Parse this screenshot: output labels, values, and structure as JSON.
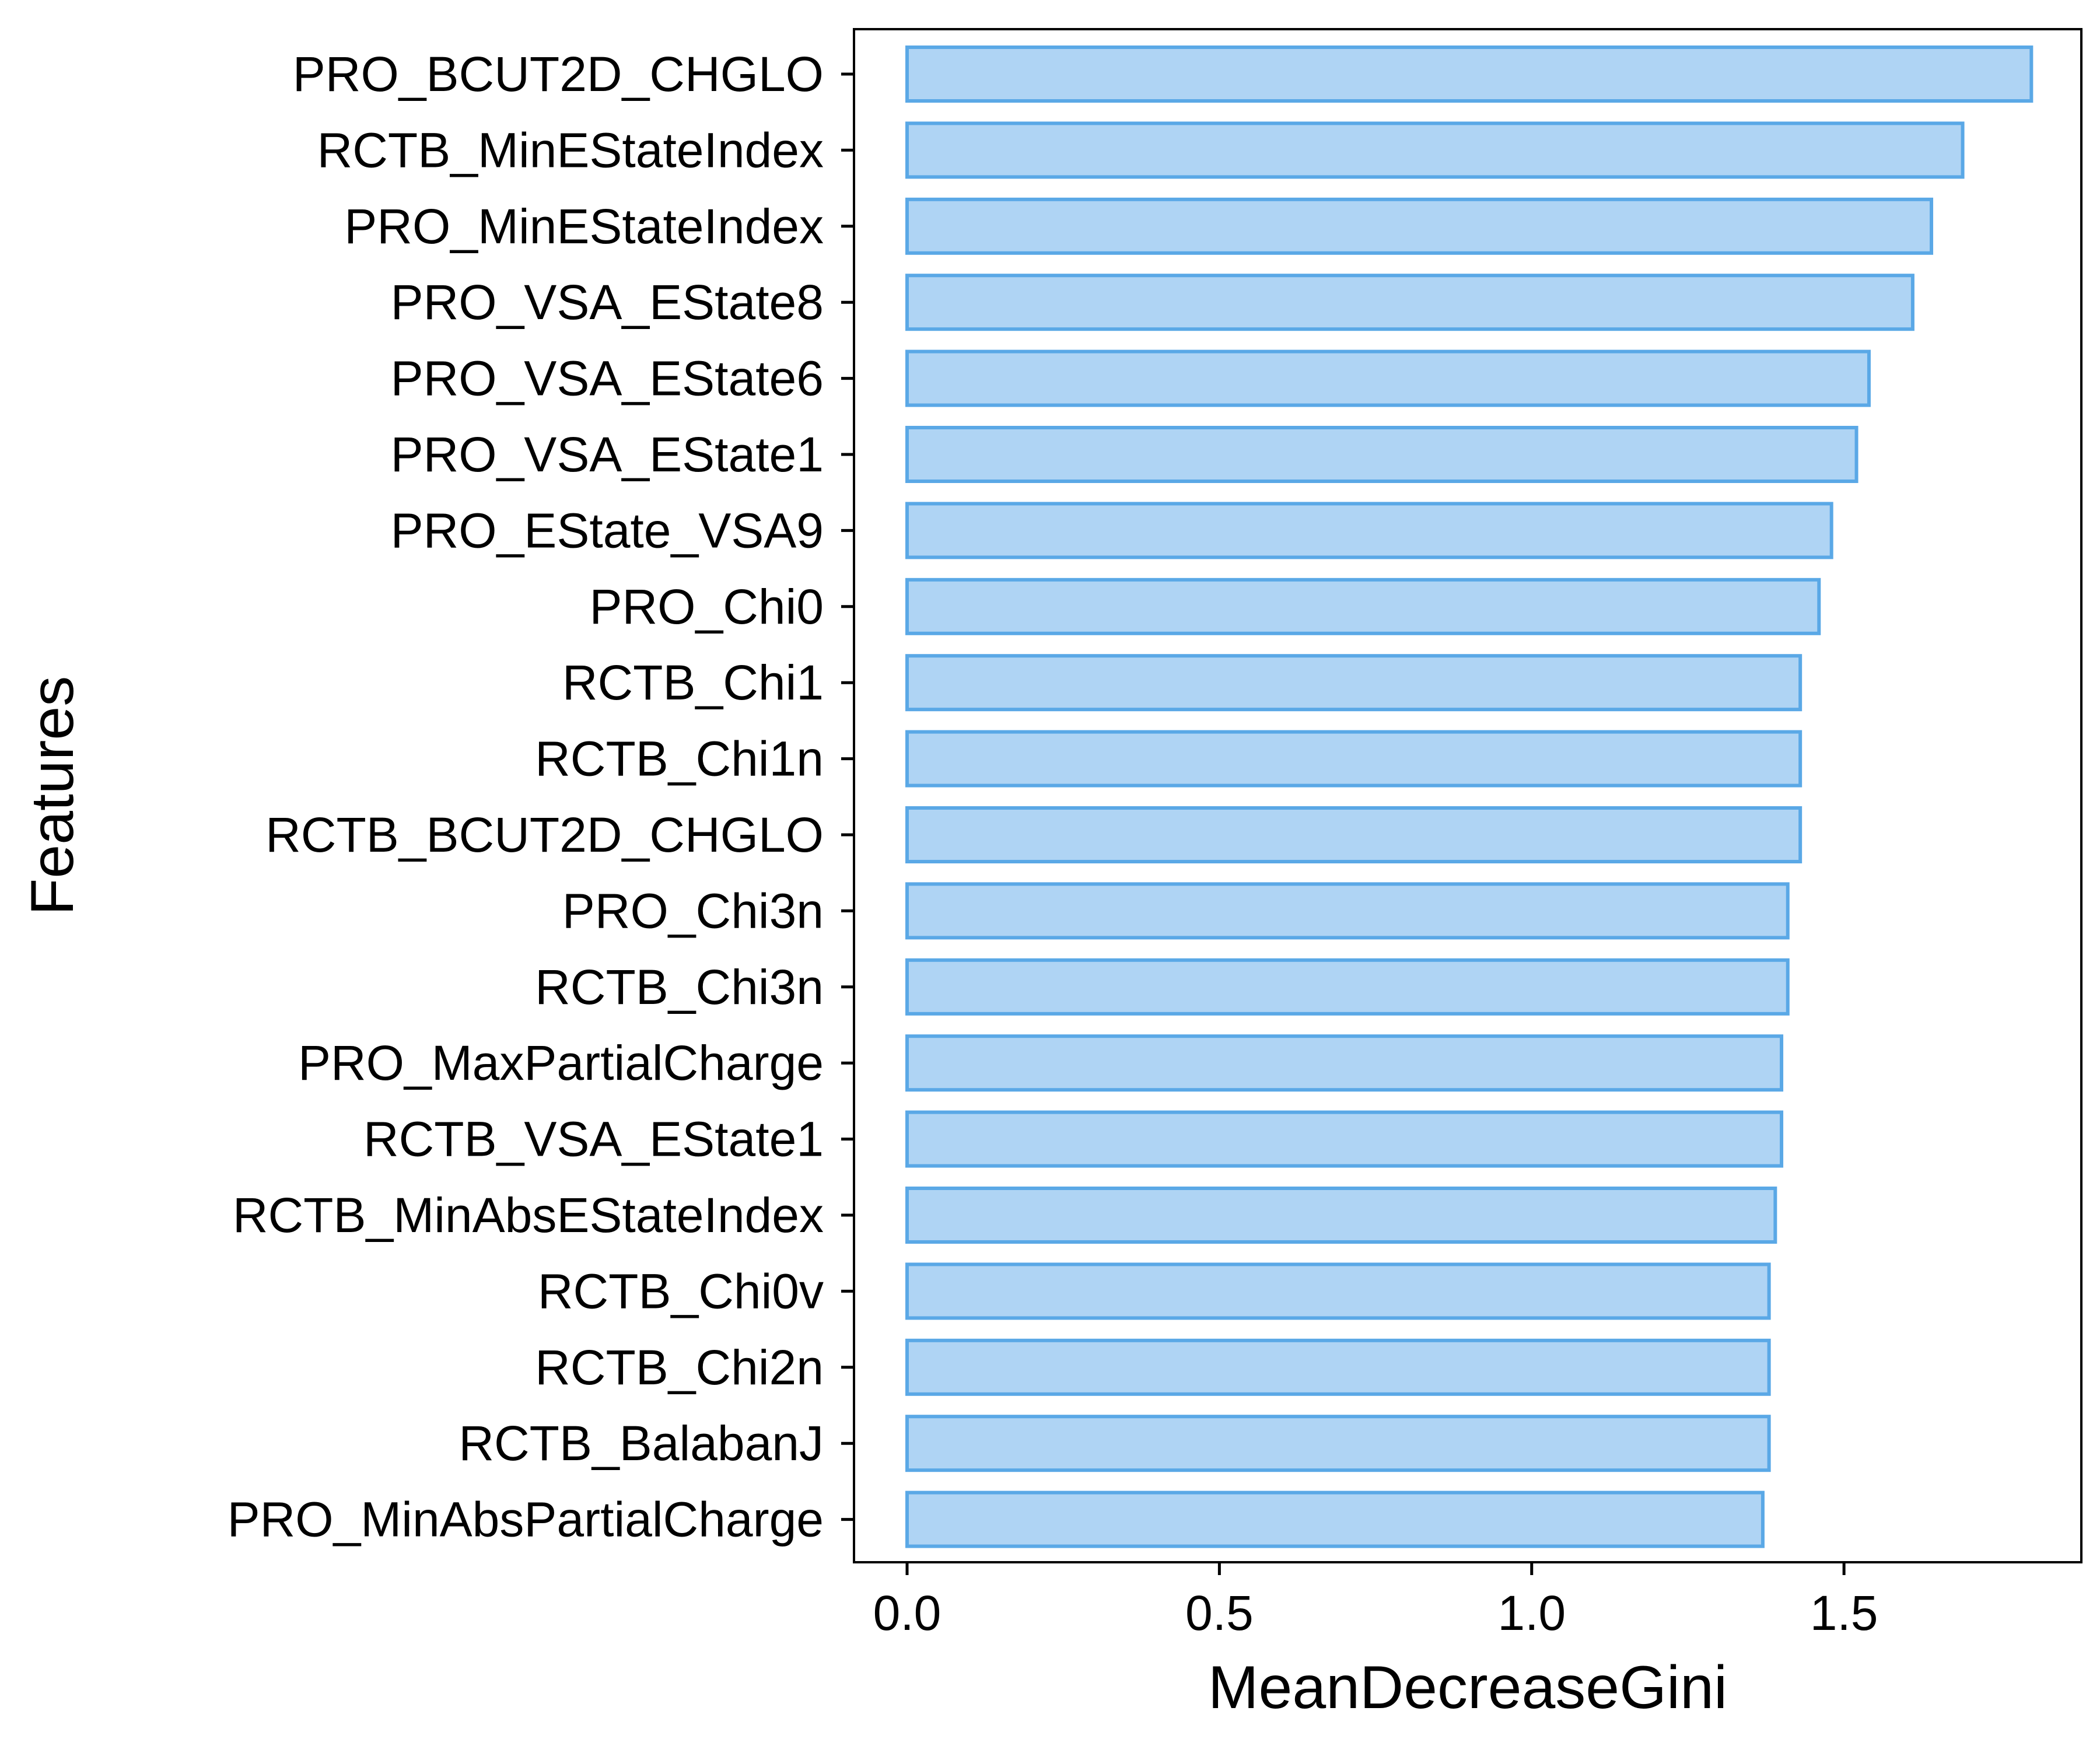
{
  "chart_data": {
    "type": "bar",
    "orientation": "horizontal",
    "xlabel": "MeanDecreaseGini",
    "ylabel": "Features",
    "xlim": [
      -0.085,
      1.88
    ],
    "xticks": [
      0.0,
      0.5,
      1.0,
      1.5
    ],
    "xtick_labels": [
      "0.0",
      "0.5",
      "1.0",
      "1.5"
    ],
    "grid": false,
    "legend": "none",
    "colors": {
      "bar_fill": "#afd4f4",
      "bar_stroke": "#5aa8e6",
      "axis": "#000000"
    },
    "categories": [
      "PRO_BCUT2D_CHGLO",
      "RCTB_MinEStateIndex",
      "PRO_MinEStateIndex",
      "PRO_VSA_EState8",
      "PRO_VSA_EState6",
      "PRO_VSA_EState1",
      "PRO_EState_VSA9",
      "PRO_Chi0",
      "RCTB_Chi1",
      "RCTB_Chi1n",
      "RCTB_BCUT2D_CHGLO",
      "PRO_Chi3n",
      "RCTB_Chi3n",
      "PRO_MaxPartialCharge",
      "RCTB_VSA_EState1",
      "RCTB_MinAbsEStateIndex",
      "RCTB_Chi0v",
      "RCTB_Chi2n",
      "RCTB_BalabanJ",
      "PRO_MinAbsPartialCharge"
    ],
    "values": [
      1.8,
      1.69,
      1.64,
      1.61,
      1.54,
      1.52,
      1.48,
      1.46,
      1.43,
      1.43,
      1.43,
      1.41,
      1.41,
      1.4,
      1.4,
      1.39,
      1.38,
      1.38,
      1.38,
      1.37
    ]
  }
}
